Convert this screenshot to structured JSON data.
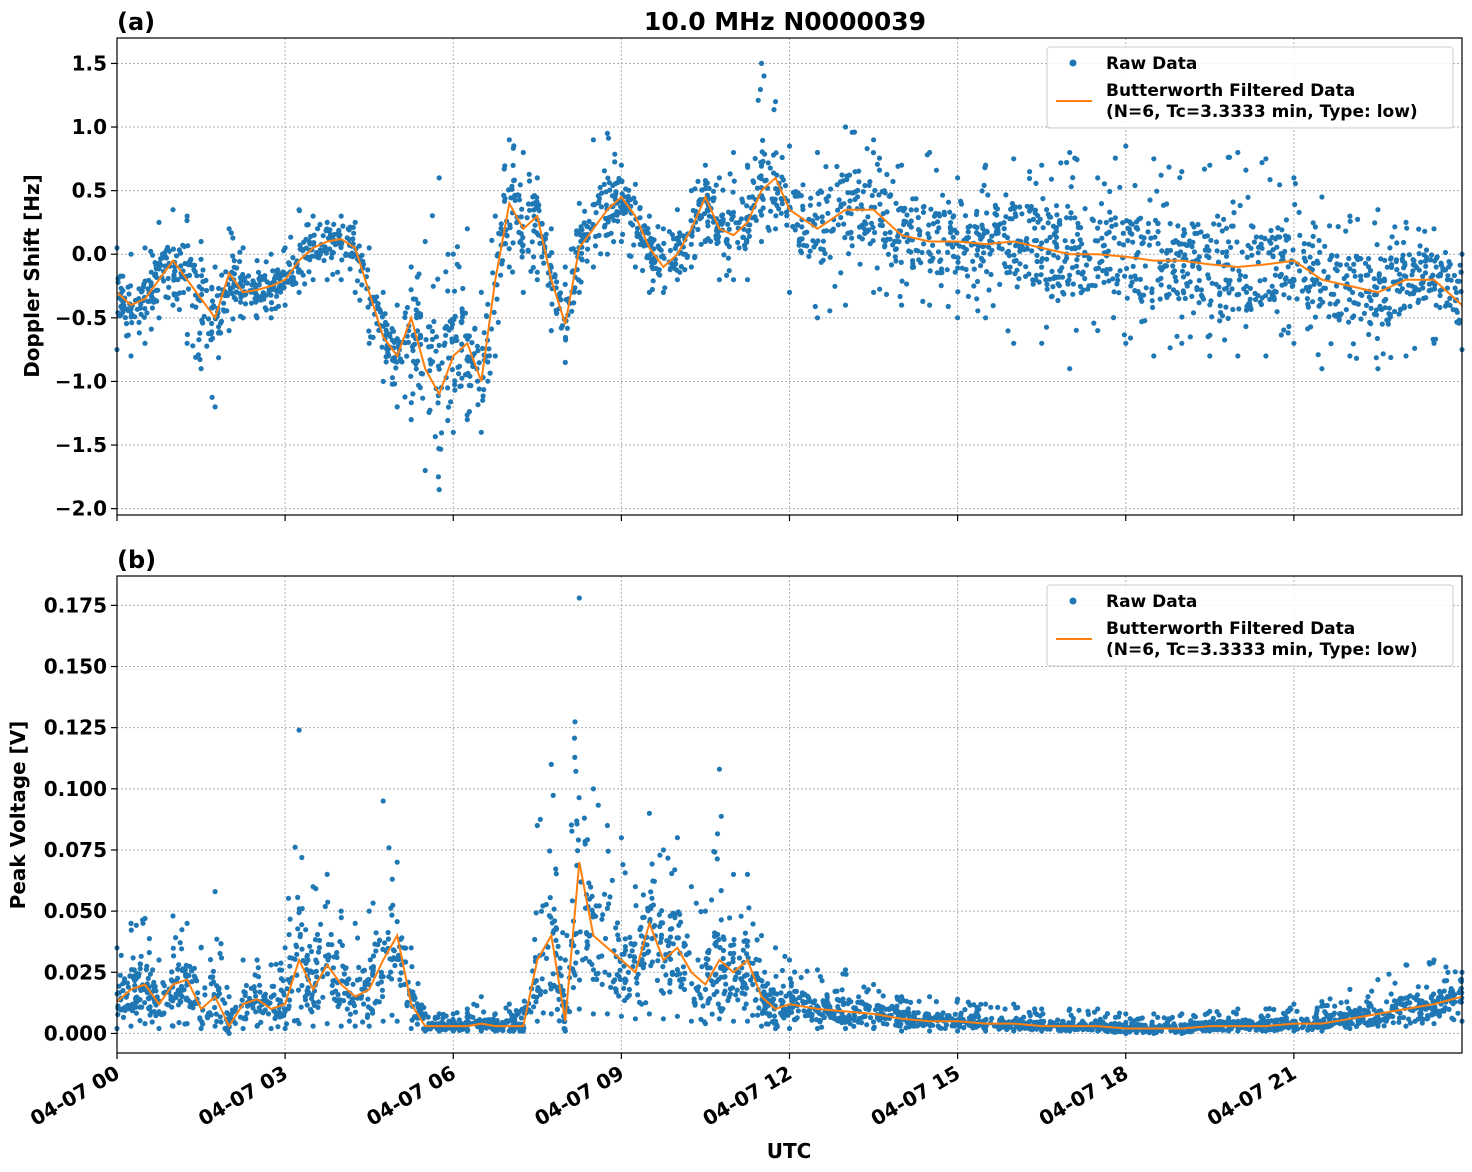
{
  "figure": {
    "title": "10.0 MHz N0000039",
    "xlabel": "UTC",
    "x_tick_labels": [
      "04-07 00",
      "04-07 03",
      "04-07 06",
      "04-07 09",
      "04-07 12",
      "04-07 15",
      "04-07 18",
      "04-07 21"
    ],
    "colors": {
      "raw": "#1f77b4",
      "filtered": "#ff7f0e"
    }
  },
  "chart_data": [
    {
      "type": "scatter",
      "panel": "(a)",
      "title": "10.0 MHz N0000039",
      "xlabel": "",
      "ylabel": "Doppler Shift [Hz]",
      "xlim": [
        0,
        24
      ],
      "x_unit": "hours UTC on 04-07",
      "ylim": [
        -2.05,
        1.7
      ],
      "y_ticks": [
        -2.0,
        -1.5,
        -1.0,
        -0.5,
        0.0,
        0.5,
        1.0,
        1.5
      ],
      "y_tick_labels": [
        "−2.0",
        "−1.5",
        "−1.0",
        "−0.5",
        "0.0",
        "0.5",
        "1.0",
        "1.5"
      ],
      "grid": true,
      "legend": {
        "placement": "top-right",
        "raw_label": "Raw Data",
        "filtered_label_line1": "Butterworth Filtered Data",
        "filtered_label_line2": "(N=6, Tc=3.3333 min, Type: low)"
      },
      "series": [
        {
          "name": "Butterworth Filtered Data",
          "style": "line",
          "x": [
            0,
            0.25,
            0.5,
            0.75,
            1.0,
            1.25,
            1.5,
            1.75,
            2.0,
            2.25,
            2.5,
            2.75,
            3.0,
            3.25,
            3.5,
            3.75,
            4.0,
            4.25,
            4.5,
            4.75,
            5.0,
            5.25,
            5.5,
            5.75,
            6.0,
            6.25,
            6.5,
            6.75,
            7.0,
            7.25,
            7.5,
            7.75,
            8.0,
            8.25,
            8.5,
            8.75,
            9.0,
            9.25,
            9.5,
            9.75,
            10.0,
            10.25,
            10.5,
            10.75,
            11.0,
            11.25,
            11.5,
            11.75,
            12.0,
            12.5,
            13.0,
            13.5,
            14.0,
            14.5,
            15.0,
            15.5,
            16.0,
            16.5,
            17.0,
            17.5,
            18.0,
            18.5,
            19.0,
            19.5,
            20.0,
            20.5,
            21.0,
            21.5,
            22.0,
            22.5,
            23.0,
            23.5,
            24.0
          ],
          "y": [
            -0.3,
            -0.4,
            -0.35,
            -0.2,
            -0.05,
            -0.2,
            -0.35,
            -0.5,
            -0.15,
            -0.3,
            -0.28,
            -0.25,
            -0.2,
            -0.05,
            0.05,
            0.1,
            0.12,
            0.05,
            -0.3,
            -0.65,
            -0.8,
            -0.5,
            -0.9,
            -1.1,
            -0.8,
            -0.7,
            -1.0,
            -0.2,
            0.4,
            0.2,
            0.3,
            -0.2,
            -0.55,
            0.05,
            0.2,
            0.35,
            0.45,
            0.3,
            0.05,
            -0.1,
            0.0,
            0.2,
            0.45,
            0.2,
            0.15,
            0.25,
            0.5,
            0.6,
            0.35,
            0.2,
            0.35,
            0.35,
            0.15,
            0.1,
            0.1,
            0.08,
            0.1,
            0.05,
            0.0,
            0.0,
            -0.02,
            -0.05,
            -0.05,
            -0.08,
            -0.1,
            -0.08,
            -0.05,
            -0.2,
            -0.25,
            -0.3,
            -0.2,
            -0.2,
            -0.4
          ]
        },
        {
          "name": "Raw Data",
          "style": "dots",
          "x": [
            0,
            0.25,
            0.5,
            0.75,
            1.0,
            1.25,
            1.5,
            1.75,
            2.0,
            2.25,
            2.5,
            2.75,
            3.0,
            3.25,
            3.5,
            3.75,
            4.0,
            4.25,
            4.5,
            4.75,
            5.0,
            5.25,
            5.5,
            5.75,
            6.0,
            6.25,
            6.5,
            6.75,
            7.0,
            7.25,
            7.5,
            7.75,
            8.0,
            8.25,
            8.5,
            8.75,
            9.0,
            9.25,
            9.5,
            9.75,
            10.0,
            10.25,
            10.5,
            10.75,
            11.0,
            11.25,
            11.5,
            11.75,
            12.0,
            12.5,
            13.0,
            13.5,
            14.0,
            14.5,
            15.0,
            15.5,
            16.0,
            16.5,
            17.0,
            17.5,
            18.0,
            18.5,
            19.0,
            19.5,
            20.0,
            20.5,
            21.0,
            21.5,
            22.0,
            22.5,
            23.0,
            23.5,
            24.0
          ],
          "y_min": [
            -0.75,
            -0.8,
            -0.7,
            -0.5,
            -0.4,
            -0.7,
            -0.9,
            -1.2,
            -0.6,
            -0.5,
            -0.5,
            -0.5,
            -0.4,
            -0.3,
            -0.2,
            -0.2,
            -0.2,
            -0.3,
            -0.7,
            -1.0,
            -1.2,
            -1.3,
            -1.7,
            -1.85,
            -1.4,
            -1.3,
            -1.4,
            -0.8,
            -0.1,
            -0.3,
            -0.2,
            -0.6,
            -0.85,
            -0.3,
            -0.1,
            0.0,
            0.1,
            -0.1,
            -0.3,
            -0.3,
            -0.2,
            -0.1,
            0.1,
            -0.2,
            -0.2,
            -0.2,
            0.1,
            0.2,
            -0.3,
            -0.5,
            -0.4,
            -0.3,
            -0.4,
            -0.4,
            -0.5,
            -0.5,
            -0.7,
            -0.7,
            -0.9,
            -0.6,
            -0.7,
            -0.8,
            -0.7,
            -0.8,
            -0.8,
            -0.8,
            -0.7,
            -0.9,
            -0.8,
            -0.9,
            -0.8,
            -0.7,
            -0.75
          ],
          "y_max": [
            0.05,
            0.0,
            0.05,
            0.25,
            0.35,
            0.3,
            0.1,
            -0.1,
            0.2,
            0.05,
            -0.05,
            0.0,
            0.05,
            0.35,
            0.3,
            0.25,
            0.3,
            0.25,
            0.05,
            -0.3,
            -0.4,
            -0.1,
            0.1,
            0.6,
            0.0,
            0.2,
            -0.3,
            0.3,
            0.9,
            0.8,
            0.6,
            0.2,
            -0.1,
            0.4,
            0.9,
            0.95,
            0.7,
            0.55,
            0.3,
            0.2,
            0.35,
            0.5,
            0.7,
            0.6,
            0.8,
            0.7,
            1.5,
            1.2,
            0.85,
            0.8,
            1.0,
            0.9,
            0.7,
            0.8,
            0.6,
            0.7,
            0.75,
            0.7,
            0.8,
            0.6,
            0.85,
            0.75,
            0.65,
            0.7,
            0.8,
            0.75,
            0.6,
            0.45,
            0.3,
            0.35,
            0.25,
            0.2,
            0.0
          ]
        }
      ]
    },
    {
      "type": "scatter",
      "panel": "(b)",
      "title": "",
      "xlabel": "UTC",
      "ylabel": "Peak Voltage [V]",
      "xlim": [
        0,
        24
      ],
      "x_unit": "hours UTC on 04-07",
      "ylim": [
        -0.008,
        0.187
      ],
      "y_ticks": [
        0.0,
        0.025,
        0.05,
        0.075,
        0.1,
        0.125,
        0.15,
        0.175
      ],
      "y_tick_labels": [
        "0.000",
        "0.025",
        "0.050",
        "0.075",
        "0.100",
        "0.125",
        "0.150",
        "0.175"
      ],
      "grid": true,
      "legend": {
        "placement": "top-right",
        "raw_label": "Raw Data",
        "filtered_label_line1": "Butterworth Filtered Data",
        "filtered_label_line2": "(N=6, Tc=3.3333 min, Type: low)"
      },
      "series": [
        {
          "name": "Butterworth Filtered Data",
          "style": "line",
          "x": [
            0,
            0.25,
            0.5,
            0.75,
            1.0,
            1.25,
            1.5,
            1.75,
            2.0,
            2.25,
            2.5,
            2.75,
            3.0,
            3.25,
            3.5,
            3.75,
            4.0,
            4.25,
            4.5,
            4.75,
            5.0,
            5.25,
            5.5,
            5.75,
            6.0,
            6.25,
            6.5,
            6.75,
            7.0,
            7.25,
            7.5,
            7.75,
            8.0,
            8.25,
            8.5,
            8.75,
            9.0,
            9.25,
            9.5,
            9.75,
            10.0,
            10.25,
            10.5,
            10.75,
            11.0,
            11.25,
            11.5,
            11.75,
            12.0,
            12.5,
            13.0,
            13.5,
            14.0,
            14.5,
            15.0,
            15.5,
            16.0,
            16.5,
            17.0,
            17.5,
            18.0,
            18.5,
            19.0,
            19.5,
            20.0,
            20.5,
            21.0,
            21.5,
            22.0,
            22.5,
            23.0,
            23.5,
            24.0
          ],
          "y": [
            0.013,
            0.018,
            0.02,
            0.012,
            0.02,
            0.022,
            0.01,
            0.015,
            0.003,
            0.012,
            0.014,
            0.01,
            0.012,
            0.03,
            0.018,
            0.028,
            0.02,
            0.015,
            0.018,
            0.03,
            0.04,
            0.012,
            0.003,
            0.003,
            0.003,
            0.003,
            0.004,
            0.003,
            0.003,
            0.003,
            0.03,
            0.04,
            0.005,
            0.07,
            0.04,
            0.035,
            0.03,
            0.025,
            0.045,
            0.03,
            0.035,
            0.025,
            0.02,
            0.03,
            0.025,
            0.03,
            0.015,
            0.01,
            0.012,
            0.01,
            0.009,
            0.008,
            0.006,
            0.005,
            0.005,
            0.004,
            0.004,
            0.003,
            0.003,
            0.003,
            0.002,
            0.002,
            0.002,
            0.003,
            0.003,
            0.003,
            0.004,
            0.004,
            0.006,
            0.008,
            0.01,
            0.012,
            0.015
          ]
        },
        {
          "name": "Raw Data",
          "style": "dots",
          "x": [
            0,
            0.25,
            0.5,
            0.75,
            1.0,
            1.25,
            1.5,
            1.75,
            2.0,
            2.25,
            2.5,
            2.75,
            3.0,
            3.25,
            3.5,
            3.75,
            4.0,
            4.25,
            4.5,
            4.75,
            5.0,
            5.25,
            5.5,
            5.75,
            6.0,
            6.25,
            6.5,
            6.75,
            7.0,
            7.25,
            7.5,
            7.75,
            8.0,
            8.25,
            8.5,
            8.75,
            9.0,
            9.25,
            9.5,
            9.75,
            10.0,
            10.25,
            10.5,
            10.75,
            11.0,
            11.25,
            11.5,
            11.75,
            12.0,
            12.5,
            13.0,
            13.5,
            14.0,
            14.5,
            15.0,
            15.5,
            16.0,
            16.5,
            17.0,
            17.5,
            18.0,
            18.5,
            19.0,
            19.5,
            20.0,
            20.5,
            21.0,
            21.5,
            22.0,
            22.5,
            23.0,
            23.5,
            24.0
          ],
          "y_min": [
            0.002,
            0.003,
            0.004,
            0.002,
            0.003,
            0.004,
            0.002,
            0.003,
            0.0,
            0.002,
            0.003,
            0.002,
            0.002,
            0.004,
            0.003,
            0.004,
            0.003,
            0.003,
            0.003,
            0.005,
            0.005,
            0.002,
            0.001,
            0.001,
            0.001,
            0.001,
            0.001,
            0.001,
            0.001,
            0.001,
            0.005,
            0.008,
            0.001,
            0.01,
            0.008,
            0.008,
            0.007,
            0.006,
            0.008,
            0.006,
            0.007,
            0.005,
            0.004,
            0.006,
            0.005,
            0.005,
            0.003,
            0.002,
            0.002,
            0.002,
            0.002,
            0.002,
            0.001,
            0.001,
            0.001,
            0.001,
            0.001,
            0.001,
            0.001,
            0.001,
            0.0,
            0.0,
            0.0,
            0.001,
            0.001,
            0.001,
            0.001,
            0.001,
            0.002,
            0.003,
            0.003,
            0.004,
            0.005
          ],
          "y_max": [
            0.035,
            0.045,
            0.047,
            0.03,
            0.048,
            0.045,
            0.035,
            0.058,
            0.015,
            0.03,
            0.03,
            0.028,
            0.035,
            0.124,
            0.06,
            0.065,
            0.05,
            0.045,
            0.05,
            0.095,
            0.07,
            0.035,
            0.008,
            0.008,
            0.008,
            0.01,
            0.015,
            0.008,
            0.012,
            0.01,
            0.085,
            0.11,
            0.03,
            0.178,
            0.1,
            0.085,
            0.08,
            0.06,
            0.09,
            0.075,
            0.08,
            0.06,
            0.05,
            0.108,
            0.065,
            0.065,
            0.04,
            0.035,
            0.03,
            0.026,
            0.026,
            0.02,
            0.015,
            0.015,
            0.014,
            0.012,
            0.012,
            0.01,
            0.01,
            0.01,
            0.008,
            0.008,
            0.008,
            0.009,
            0.01,
            0.01,
            0.012,
            0.013,
            0.018,
            0.022,
            0.028,
            0.03,
            0.025
          ]
        }
      ]
    }
  ]
}
